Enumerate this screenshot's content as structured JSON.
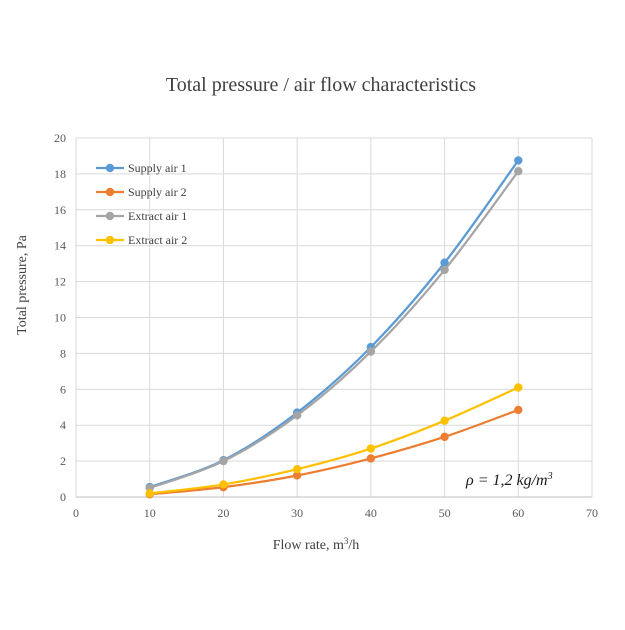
{
  "chart_data": {
    "type": "line",
    "title": "Total pressure / air flow characteristics",
    "xlabel_main": "Flow rate, m",
    "xlabel_sup": "3",
    "xlabel_tail": "/h",
    "ylabel": "Total pressure, Pa",
    "xlim": [
      0,
      70
    ],
    "ylim": [
      0,
      20
    ],
    "xticks": [
      0,
      10,
      20,
      30,
      40,
      50,
      60,
      70
    ],
    "yticks": [
      0,
      2,
      4,
      6,
      8,
      10,
      12,
      14,
      16,
      18,
      20
    ],
    "grid": true,
    "legend_position": "top-left",
    "annotation": {
      "rho_symbol": "ρ",
      "rho_text": " = 1,2 kg/m",
      "rho_sup": "3"
    },
    "series": [
      {
        "name": "Supply air 1",
        "color": "#5b9bd5",
        "x": [
          10,
          20,
          30,
          40,
          50,
          60
        ],
        "y": [
          0.55,
          2.05,
          4.7,
          8.35,
          13.05,
          18.75
        ]
      },
      {
        "name": "Supply air 2",
        "color": "#ed7d31",
        "x": [
          10,
          20,
          30,
          40,
          50,
          60
        ],
        "y": [
          0.15,
          0.55,
          1.2,
          2.15,
          3.35,
          4.85
        ]
      },
      {
        "name": "Extract air 1",
        "color": "#a5a5a5",
        "x": [
          10,
          20,
          30,
          40,
          50,
          60
        ],
        "y": [
          0.5,
          2.0,
          4.55,
          8.1,
          12.65,
          18.15
        ]
      },
      {
        "name": "Extract air 2",
        "color": "#ffc000",
        "x": [
          10,
          20,
          30,
          40,
          50,
          60
        ],
        "y": [
          0.2,
          0.7,
          1.55,
          2.7,
          4.25,
          6.1
        ]
      }
    ]
  }
}
